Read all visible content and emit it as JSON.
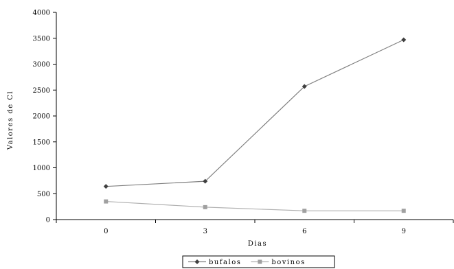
{
  "chart_data": {
    "type": "line",
    "title": "",
    "xlabel": "Dias",
    "ylabel": "Valores de Cl",
    "categories": [
      "0",
      "3",
      "6",
      "9"
    ],
    "ylim": [
      0,
      4000
    ],
    "yticks": [
      0,
      500,
      1000,
      1500,
      2000,
      2500,
      3000,
      3500,
      4000
    ],
    "grid": false,
    "legend_position": "bottom",
    "series": [
      {
        "name": "bufalos",
        "values": [
          640,
          740,
          2570,
          3470
        ],
        "color": "#808080",
        "marker": "diamond",
        "marker_color": "#404040"
      },
      {
        "name": "bovinos",
        "values": [
          350,
          240,
          170,
          170
        ],
        "color": "#b0b0b0",
        "marker": "square",
        "marker_color": "#a0a0a0"
      }
    ]
  }
}
